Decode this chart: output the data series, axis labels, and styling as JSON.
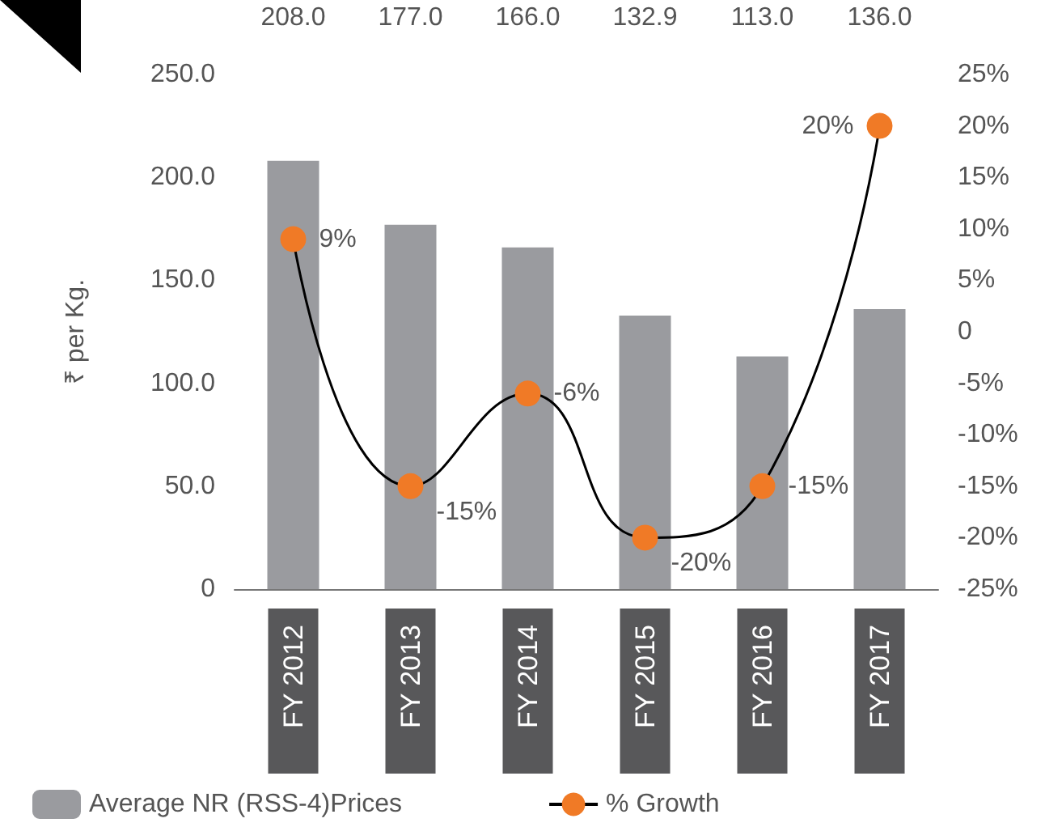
{
  "chart_data": {
    "type": "bar",
    "ylabel": "₹ per Kg.",
    "categories": [
      "FY 2012",
      "FY 2013",
      "FY 2014",
      "FY 2015",
      "FY 2016",
      "FY 2017"
    ],
    "series": [
      {
        "name": "Average NR (RSS-4)Prices",
        "color": "#9a9b9f",
        "values": [
          208.0,
          177.0,
          166.0,
          132.9,
          113.0,
          136.0
        ],
        "value_labels": [
          "208.0",
          "177.0",
          "166.0",
          "132.9",
          "113.0",
          "136.0"
        ]
      },
      {
        "name": "% Growth",
        "type": "line",
        "axis": "y2",
        "color": "#f07a26",
        "values": [
          9,
          -15,
          -6,
          -20,
          -15,
          20
        ],
        "value_labels": [
          "9%",
          "-15%",
          "-6%",
          "-20%",
          "-15%",
          "20%"
        ]
      }
    ],
    "ylim": [
      0,
      250
    ],
    "yticks": [
      {
        "value": 0,
        "label": "0"
      },
      {
        "value": 50,
        "label": "50.0"
      },
      {
        "value": 100,
        "label": "100.0"
      },
      {
        "value": 150,
        "label": "150.0"
      },
      {
        "value": 200,
        "label": "200.0"
      },
      {
        "value": 250,
        "label": "250.0"
      }
    ],
    "y2lim": [
      -25,
      25
    ],
    "y2ticks": [
      {
        "value": -25,
        "label": "-25%"
      },
      {
        "value": -20,
        "label": "-20%"
      },
      {
        "value": -15,
        "label": "-15%"
      },
      {
        "value": -10,
        "label": "-10%"
      },
      {
        "value": -5,
        "label": "-5%"
      },
      {
        "value": 0,
        "label": "0"
      },
      {
        "value": 5,
        "label": "5%"
      },
      {
        "value": 10,
        "label": "10%"
      },
      {
        "value": 15,
        "label": "15%"
      },
      {
        "value": 20,
        "label": "20%"
      },
      {
        "value": 25,
        "label": "25%"
      }
    ],
    "grid": false,
    "legend": "bottom left",
    "marker": "circle",
    "line_style": "solid"
  }
}
